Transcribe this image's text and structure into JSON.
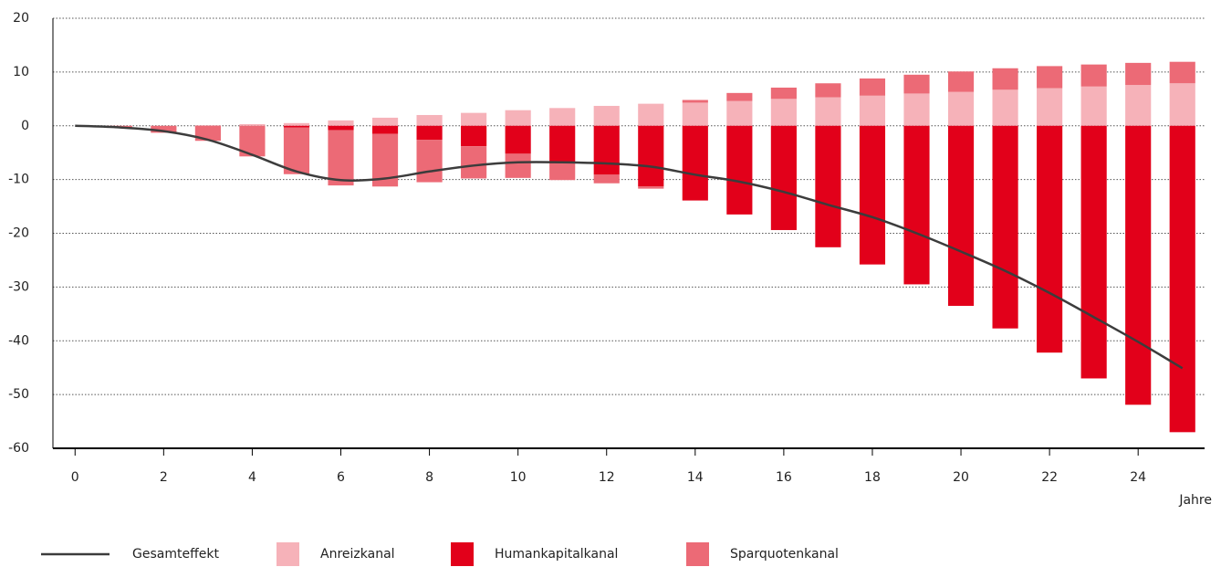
{
  "chart_data": {
    "type": "stacked-bar-line",
    "x_label": "Jahre",
    "x": [
      0,
      1,
      2,
      3,
      4,
      5,
      6,
      7,
      8,
      9,
      10,
      11,
      12,
      13,
      14,
      15,
      16,
      17,
      18,
      19,
      20,
      21,
      22,
      23,
      24,
      25
    ],
    "xlim": [
      -0.5,
      25.5
    ],
    "xticks": [
      0,
      2,
      4,
      6,
      8,
      10,
      12,
      14,
      16,
      18,
      20,
      22,
      24
    ],
    "ylim": [
      -60,
      20
    ],
    "yticks": [
      -60,
      -50,
      -40,
      -30,
      -20,
      -10,
      0,
      10,
      20
    ],
    "grid": true,
    "series": [
      {
        "name": "Gesamteffekt",
        "type": "line",
        "color": "#3c3c3c",
        "values": [
          0,
          -0.3,
          -1.0,
          -2.6,
          -5.4,
          -8.5,
          -10.1,
          -9.8,
          -8.5,
          -7.4,
          -6.8,
          -6.8,
          -7.0,
          -7.6,
          -9.1,
          -10.4,
          -12.3,
          -14.7,
          -17.0,
          -20.0,
          -23.4,
          -27.0,
          -31.1,
          -35.6,
          -40.2,
          -45.1
        ]
      },
      {
        "name": "Anreizkanal",
        "type": "bar",
        "color": "#f6b2b9",
        "values": [
          0,
          0,
          0,
          0.1,
          0.3,
          0.5,
          1.0,
          1.5,
          2.0,
          2.4,
          2.9,
          3.3,
          3.7,
          4.1,
          4.3,
          4.6,
          5.0,
          5.3,
          5.6,
          6.0,
          6.3,
          6.7,
          7.0,
          7.3,
          7.6,
          7.9
        ]
      },
      {
        "name": "Humankapitalkanal",
        "type": "bar",
        "color": "#e2001a",
        "values": [
          0,
          0,
          0,
          0,
          0,
          -0.3,
          -0.8,
          -1.5,
          -2.6,
          -3.8,
          -5.2,
          -7.0,
          -9.1,
          -11.3,
          -13.9,
          -16.5,
          -19.4,
          -22.6,
          -25.8,
          -29.5,
          -33.5,
          -37.7,
          -42.2,
          -47.0,
          -51.9,
          -57.0
        ]
      },
      {
        "name": "Sparquotenkanal",
        "type": "bar",
        "color": "#ec6a76",
        "values": [
          0,
          -0.3,
          -1.3,
          -2.8,
          -5.7,
          -8.7,
          -10.3,
          -9.8,
          -7.9,
          -6.0,
          -4.5,
          -3.1,
          -1.6,
          -0.4,
          0.5,
          1.5,
          2.1,
          2.6,
          3.2,
          3.5,
          3.8,
          4.0,
          4.1,
          4.1,
          4.1,
          4.0
        ]
      }
    ]
  }
}
